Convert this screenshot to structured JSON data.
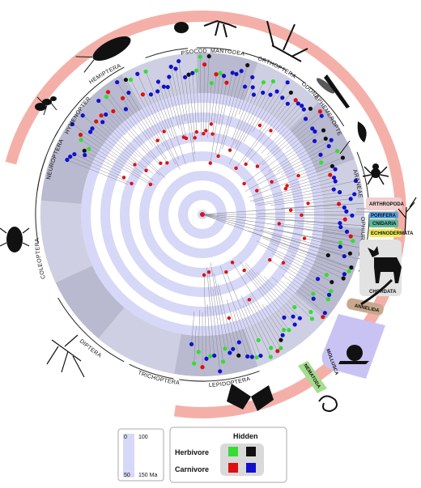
{
  "clade_labels": {
    "psocodea": "PSOCODEA",
    "mantodea": "MANTODEA",
    "orthoptera": "ORTHOPTERA",
    "odonata": "ODONATA",
    "ephemeroptera": "EPHEMEROPTERA",
    "araneae": "ARANEAE",
    "ophiuroidea": "OPHIUROIDEA",
    "hemiptera": "HEMIPTERA",
    "hymenoptera": "HYMENOPTERA",
    "neuroptera": "NEUROPTERA",
    "coleoptera": "COLEOPTERA",
    "diptera": "DIPTERA",
    "trichoptera": "TRICHOPTERA",
    "lepidoptera": "LEPIDOPTERA"
  },
  "phylum_labels": {
    "arthropoda": "ARTHROPODA",
    "porifera": "PORIFERA",
    "cnidaria": "CNIDARIA",
    "echinodermata": "ECHINODERMATA",
    "chordata": "CHORDATA",
    "annelida": "ANNELIDA",
    "mollusca": "MOLLUSCA",
    "nematoda": "NEMATODA"
  },
  "scale": {
    "t0": "0",
    "t50": "50",
    "t100": "100",
    "t150": "150 Ma"
  },
  "legend": {
    "hidden": "Hidden",
    "herbivore": "Herbivore",
    "carnivore": "Carnivore"
  },
  "colors": {
    "herbivore_visible": "#33dd33",
    "herbivore_hidden": "#111111",
    "carnivore_visible": "#dd1111",
    "carnivore_hidden": "#1111cc",
    "outer_ring": "#f4b0a8",
    "time_band": "#d7d7f7",
    "clade_sector": "#b9b9cf",
    "porifera": "#5aa0e0",
    "cnidaria": "#5fb89a",
    "echinodermata": "#f2ee55",
    "annelida": "#c8a88e",
    "mollusca": "#c9c3f4",
    "nematoda": "#a6dc8e",
    "chordata": "#e2e2e2"
  }
}
